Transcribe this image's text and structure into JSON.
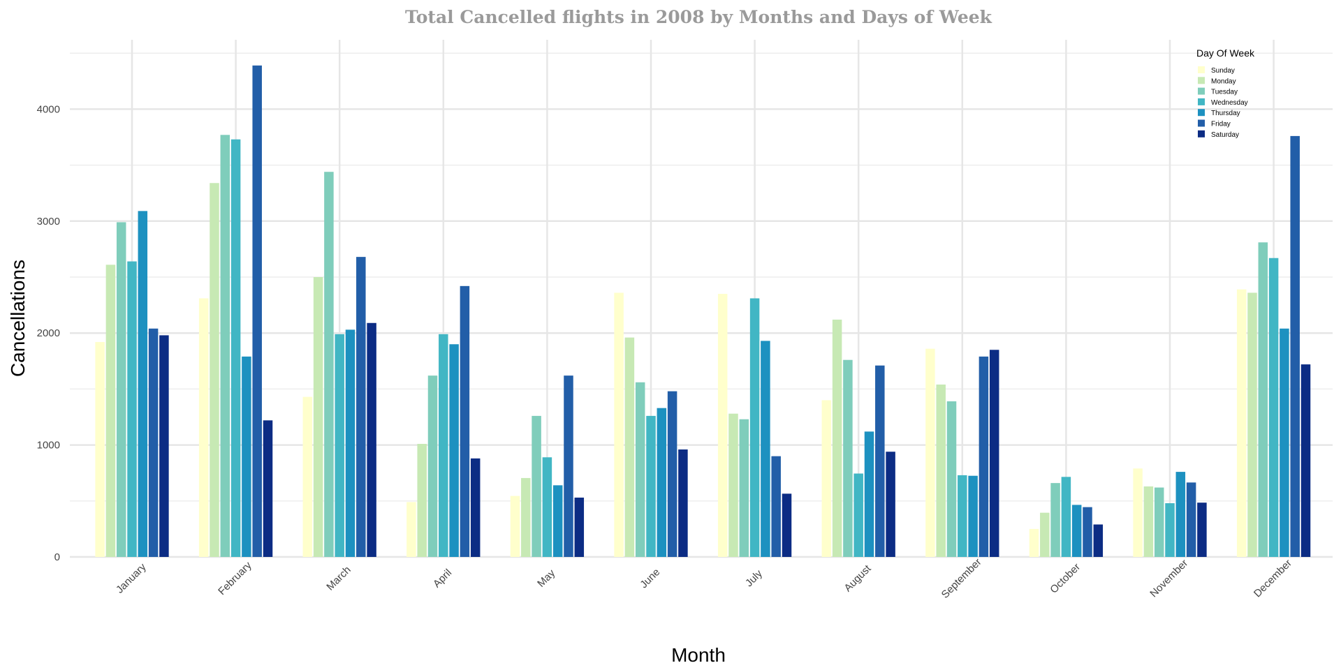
{
  "chart_data": {
    "type": "bar",
    "title": "Total Cancelled flights in 2008 by Months and Days of Week",
    "xlabel": "Month",
    "ylabel": "Cancellations",
    "ylim": [
      0,
      4600
    ],
    "yticks": [
      0,
      1000,
      2000,
      3000,
      4000
    ],
    "grid": true,
    "legend_title": "Day Of Week",
    "legend_position": "top-right",
    "categories": [
      "January",
      "February",
      "March",
      "April",
      "May",
      "June",
      "July",
      "August",
      "September",
      "October",
      "November",
      "December"
    ],
    "series": [
      {
        "name": "Sunday",
        "color": "#ffffcc",
        "values": [
          1920,
          2310,
          1430,
          490,
          545,
          2360,
          2350,
          1400,
          1860,
          250,
          790,
          2390
        ]
      },
      {
        "name": "Monday",
        "color": "#c7e9b4",
        "values": [
          2610,
          3340,
          2500,
          1010,
          705,
          1960,
          1280,
          2120,
          1540,
          395,
          630,
          2360
        ]
      },
      {
        "name": "Tuesday",
        "color": "#7fcdbb",
        "values": [
          2990,
          3770,
          3440,
          1620,
          1260,
          1560,
          1230,
          1760,
          1390,
          660,
          620,
          2810
        ]
      },
      {
        "name": "Wednesday",
        "color": "#41b6c4",
        "values": [
          2640,
          3730,
          1990,
          1990,
          890,
          1260,
          2310,
          745,
          730,
          715,
          480,
          2670
        ]
      },
      {
        "name": "Thursday",
        "color": "#1d91c0",
        "values": [
          3090,
          1790,
          2030,
          1900,
          640,
          1330,
          1930,
          1120,
          725,
          465,
          760,
          2040
        ]
      },
      {
        "name": "Friday",
        "color": "#225ea8",
        "values": [
          2040,
          4390,
          2680,
          2420,
          1620,
          1480,
          900,
          1710,
          1790,
          445,
          665,
          3760
        ]
      },
      {
        "name": "Saturday",
        "color": "#0c2c84",
        "values": [
          1980,
          1220,
          2090,
          880,
          530,
          960,
          565,
          940,
          1850,
          290,
          485,
          1720
        ]
      }
    ]
  }
}
